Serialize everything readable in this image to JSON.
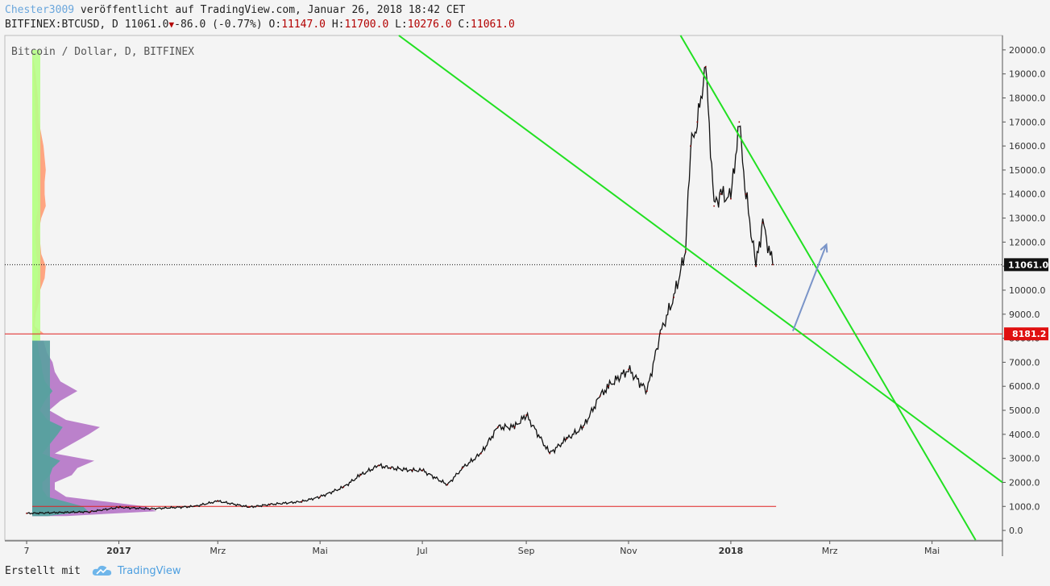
{
  "header": {
    "author": "Chester3009",
    "published": " veröffentlicht auf TradingView.com, Januar 26, 2018 18:42 CET",
    "symbol": "BITFINEX:BTCUSD, D ",
    "last": "11061.0",
    "change": "-86.0 (-0.77%)",
    "o_label": "O:",
    "o_value": "11147.0",
    "h_label": "H:",
    "h_value": "11700.0",
    "l_label": "L:",
    "l_value": "10276.0",
    "c_label": "C:",
    "c_value": "11061.0"
  },
  "footer": {
    "made_with": "Erstellt mit",
    "brand": "TradingView"
  },
  "colors": {
    "trendline": "#22e022",
    "hline": "#e02020",
    "arrow": "#7a94c8",
    "vp_up": "#b8ff8a",
    "vp_down": "#ffa07a",
    "vp_teal": "#5aa0a0",
    "vp_purple": "#b77ac8"
  },
  "chart_data": {
    "type": "line",
    "title": "Bitcoin / Dollar, D, BITFINEX",
    "x": [
      "2016-11-07",
      "2016-12-15",
      "2017-01-01",
      "2017-01-20",
      "2017-02-15",
      "2017-03-01",
      "2017-03-20",
      "2017-04-01",
      "2017-04-20",
      "2017-05-01",
      "2017-05-15",
      "2017-05-25",
      "2017-06-05",
      "2017-06-12",
      "2017-06-25",
      "2017-07-01",
      "2017-07-16",
      "2017-07-25",
      "2017-08-05",
      "2017-08-15",
      "2017-08-25",
      "2017-09-01",
      "2017-09-15",
      "2017-09-25",
      "2017-10-05",
      "2017-10-15",
      "2017-10-20",
      "2017-11-01",
      "2017-11-12",
      "2017-11-20",
      "2017-11-28",
      "2017-12-05",
      "2017-12-08",
      "2017-12-12",
      "2017-12-17",
      "2017-12-22",
      "2017-12-26",
      "2018-01-01",
      "2018-01-06",
      "2018-01-10",
      "2018-01-16",
      "2018-01-20",
      "2018-01-26"
    ],
    "series": [
      {
        "values": [
          710,
          780,
          960,
          900,
          1000,
          1220,
          970,
          1080,
          1200,
          1400,
          1800,
          2300,
          2700,
          2600,
          2500,
          2500,
          1900,
          2600,
          3200,
          4300,
          4300,
          4800,
          3200,
          3800,
          4300,
          5600,
          6000,
          6700,
          5800,
          8200,
          9700,
          11600,
          16000,
          17000,
          19300,
          13500,
          14000,
          13800,
          17000,
          14000,
          11000,
          12800,
          11061
        ]
      }
    ],
    "yticks": [
      0,
      1000,
      2000,
      3000,
      4000,
      5000,
      6000,
      7000,
      8000,
      9000,
      10000,
      11000,
      12000,
      13000,
      14000,
      15000,
      16000,
      17000,
      18000,
      19000,
      20000
    ],
    "ylim": [
      -400,
      20600
    ],
    "xticks": [
      {
        "label": "7",
        "date": "2016-11-07",
        "bold": false
      },
      {
        "label": "2017",
        "date": "2017-01-01",
        "bold": true
      },
      {
        "label": "Mrz",
        "date": "2017-03-01",
        "bold": false
      },
      {
        "label": "Mai",
        "date": "2017-05-01",
        "bold": false
      },
      {
        "label": "Jul",
        "date": "2017-07-01",
        "bold": false
      },
      {
        "label": "Sep",
        "date": "2017-09-01",
        "bold": false
      },
      {
        "label": "Nov",
        "date": "2017-11-01",
        "bold": false
      },
      {
        "label": "2018",
        "date": "2018-01-01",
        "bold": true
      },
      {
        "label": "Mrz",
        "date": "2018-03-01",
        "bold": false
      },
      {
        "label": "Mai",
        "date": "2018-05-01",
        "bold": false
      }
    ],
    "xlim": [
      "2016-10-25",
      "2018-06-12"
    ],
    "last_price_tag": "11061.0",
    "level_tag": "8181.2",
    "level_value": 8181.2,
    "support_value": 1000,
    "support_end": "2018-01-28",
    "trendlines": [
      {
        "from": {
          "date": "2017-06-17",
          "value": 20600
        },
        "to": {
          "date": "2018-06-12",
          "value": 2000
        }
      },
      {
        "from": {
          "date": "2017-12-02",
          "value": 20600
        },
        "to": {
          "date": "2018-05-27",
          "value": -400
        }
      }
    ],
    "arrow": {
      "from": {
        "date": "2018-02-07",
        "value": 8300
      },
      "to": {
        "date": "2018-02-27",
        "value": 11900
      }
    },
    "volume_profile": {
      "split_value": 7900,
      "upper": [
        [
          20000,
          0
        ],
        [
          19000,
          6
        ],
        [
          18000,
          10
        ],
        [
          17000,
          12
        ],
        [
          16000,
          20
        ],
        [
          15000,
          24
        ],
        [
          14500,
          22
        ],
        [
          14000,
          22
        ],
        [
          13500,
          24
        ],
        [
          13000,
          16
        ],
        [
          12500,
          12
        ],
        [
          12000,
          14
        ],
        [
          11500,
          16
        ],
        [
          11000,
          24
        ],
        [
          10500,
          22
        ],
        [
          10000,
          14
        ],
        [
          9500,
          12
        ],
        [
          9000,
          6
        ],
        [
          8500,
          4
        ],
        [
          8200,
          20
        ]
      ],
      "lower": [
        [
          7900,
          20
        ],
        [
          7400,
          26
        ],
        [
          7000,
          36
        ],
        [
          6600,
          40
        ],
        [
          6200,
          50
        ],
        [
          5800,
          80
        ],
        [
          5400,
          50
        ],
        [
          5000,
          30
        ],
        [
          4600,
          60
        ],
        [
          4300,
          120
        ],
        [
          4000,
          100
        ],
        [
          3600,
          70
        ],
        [
          3200,
          40
        ],
        [
          2900,
          110
        ],
        [
          2600,
          80
        ],
        [
          2300,
          70
        ],
        [
          2000,
          40
        ],
        [
          1700,
          40
        ],
        [
          1400,
          60
        ],
        [
          1200,
          130
        ],
        [
          1000,
          200
        ],
        [
          800,
          220
        ],
        [
          600,
          60
        ]
      ],
      "up_share": 0.45
    }
  }
}
